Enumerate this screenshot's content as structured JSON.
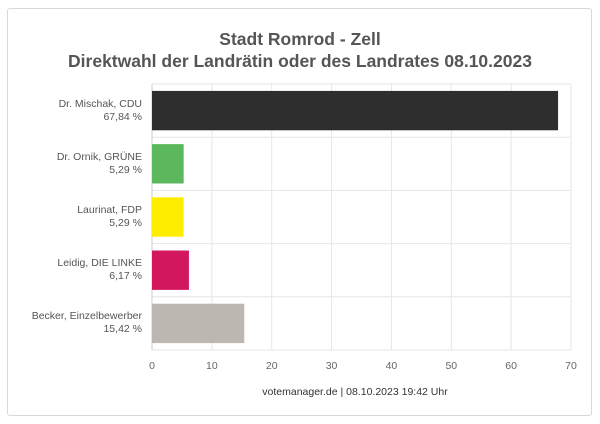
{
  "chart_data": {
    "type": "bar",
    "orientation": "horizontal",
    "title": "Stadt Romrod - Zell",
    "subtitle": "Direktwahl der Landrätin oder des Landrates 08.10.2023",
    "categories": [
      {
        "name": "Dr. Mischak, CDU",
        "label": "67,84 %",
        "value": 67.84,
        "color": "#2e2e2e"
      },
      {
        "name": "Dr. Ornik, GRÜNE",
        "label": "5,29 %",
        "value": 5.29,
        "color": "#5cb85c"
      },
      {
        "name": "Laurinat, FDP",
        "label": "5,29 %",
        "value": 5.29,
        "color": "#ffed00"
      },
      {
        "name": "Leidig, DIE LINKE",
        "label": "6,17 %",
        "value": 6.17,
        "color": "#d3175f"
      },
      {
        "name": "Becker, Einzelbewerber",
        "label": "15,42 %",
        "value": 15.42,
        "color": "#bcb7b1"
      }
    ],
    "xlim": [
      0,
      70
    ],
    "xticks": [
      "0",
      "10",
      "20",
      "30",
      "40",
      "50",
      "60",
      "70"
    ],
    "grid": true,
    "legend": "none",
    "footer": "votemanager.de | 08.10.2023 19:42 Uhr"
  }
}
